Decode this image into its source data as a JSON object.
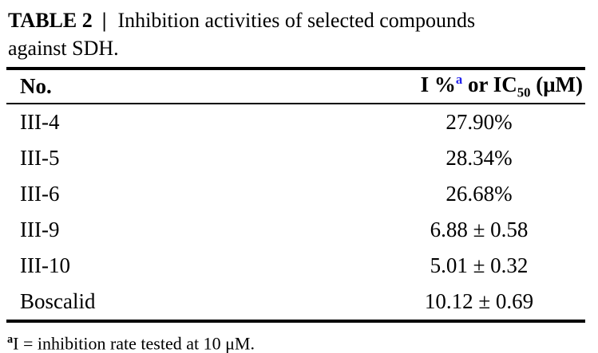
{
  "caption": {
    "label": "TABLE 2",
    "separator": "|",
    "line1": "Inhibition activities of selected compounds",
    "line2": "against SDH."
  },
  "table": {
    "col1_header": "No.",
    "col2_header": {
      "prefix": "I %",
      "sup": "a",
      "mid": " or IC",
      "sub": "50",
      "suffix": " (μM)"
    },
    "rows": [
      {
        "no": "III-4",
        "value": "27.90%"
      },
      {
        "no": "III-5",
        "value": "28.34%"
      },
      {
        "no": "III-6",
        "value": "26.68%"
      },
      {
        "no": "III-9",
        "value": "6.88 ± 0.58"
      },
      {
        "no": "III-10",
        "value": "5.01 ± 0.32"
      },
      {
        "no": "Boscalid",
        "value": "10.12 ± 0.69"
      }
    ]
  },
  "footnote": {
    "marker": "a",
    "text": "I = inhibition rate tested at 10 μM."
  },
  "colors": {
    "background": "#ffffff",
    "text": "#000000",
    "footnote_marker_blue": "#2323ee"
  }
}
